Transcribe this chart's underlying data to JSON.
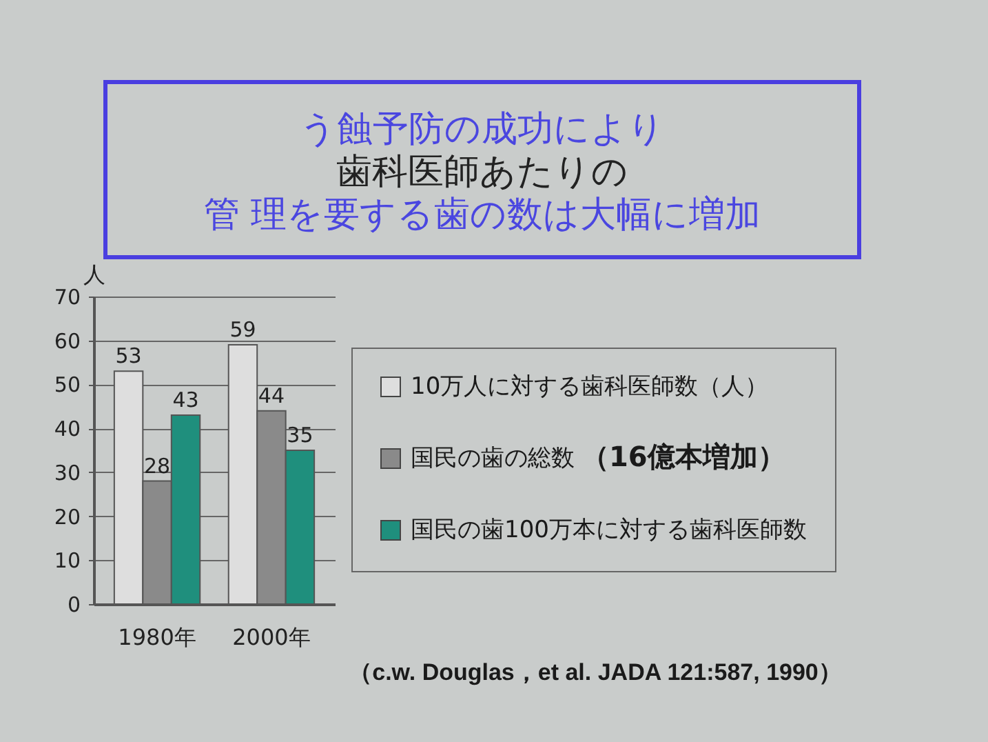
{
  "chart_data": {
    "type": "bar",
    "title": "う蝕予防の成功により歯科医師あたりの管 理を要する歯の数は大幅に増加",
    "ylabel": "人",
    "categories": [
      "1980年",
      "2000年"
    ],
    "series": [
      {
        "name": "10万人に対する歯科医師数（人）",
        "color": "#dedede",
        "values": [
          53,
          59
        ]
      },
      {
        "name": "国民の歯の総数",
        "color": "#8a8a8a",
        "values": [
          28,
          44
        ]
      },
      {
        "name": "国民の歯100万本に対する歯科医師数",
        "color": "#1f8f7d",
        "values": [
          43,
          35
        ]
      }
    ],
    "ylim": [
      0,
      70
    ],
    "yticks": [
      0,
      10,
      20,
      30,
      40,
      50,
      60,
      70
    ],
    "grid": "y",
    "legend": "right",
    "data_labels": true,
    "annotations": [
      "（16億本増加）",
      "（c.w. Douglas，et al. JADA 121:587, 1990）"
    ]
  }
}
